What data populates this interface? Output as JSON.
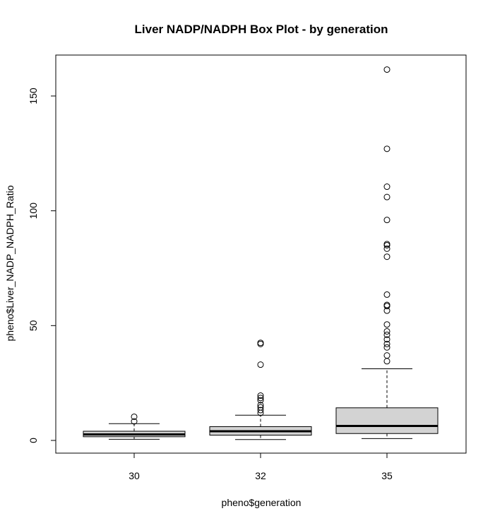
{
  "chart_data": {
    "type": "box",
    "title": "Liver NADP/NADPH Box Plot - by generation",
    "xlabel": "pheno$generation",
    "ylabel": "pheno$Liver_NADP_NADPH_Ratio",
    "ylim": [
      -5.5,
      167
    ],
    "yticks": [
      0,
      50,
      100,
      150
    ],
    "categories": [
      "30",
      "32",
      "35"
    ],
    "box_color": "#d3d3d3",
    "groups": [
      {
        "label": "30",
        "whisker_low": 0.5,
        "q1": 1.6,
        "median": 2.6,
        "q3": 4.0,
        "whisker_high": 7.3,
        "outliers": [
          8.3,
          10.3
        ]
      },
      {
        "label": "32",
        "whisker_low": 0.4,
        "q1": 2.3,
        "median": 4.0,
        "q3": 6.0,
        "whisker_high": 11.0,
        "outliers": [
          12.0,
          13.2,
          14.4,
          15.4,
          17.5,
          18.5,
          19.5,
          33.0,
          42.0,
          42.5
        ]
      },
      {
        "label": "35",
        "whisker_low": 0.8,
        "q1": 3.0,
        "median": 6.3,
        "q3": 14.2,
        "whisker_high": 31.2,
        "outliers": [
          34.5,
          37.0,
          40.5,
          42.0,
          44.0,
          46.0,
          47.5,
          50.5,
          56.5,
          58.5,
          59.0,
          63.5,
          80.0,
          83.5,
          85.0,
          85.5,
          96.0,
          106.0,
          110.5,
          127.0,
          161.5
        ]
      }
    ]
  }
}
